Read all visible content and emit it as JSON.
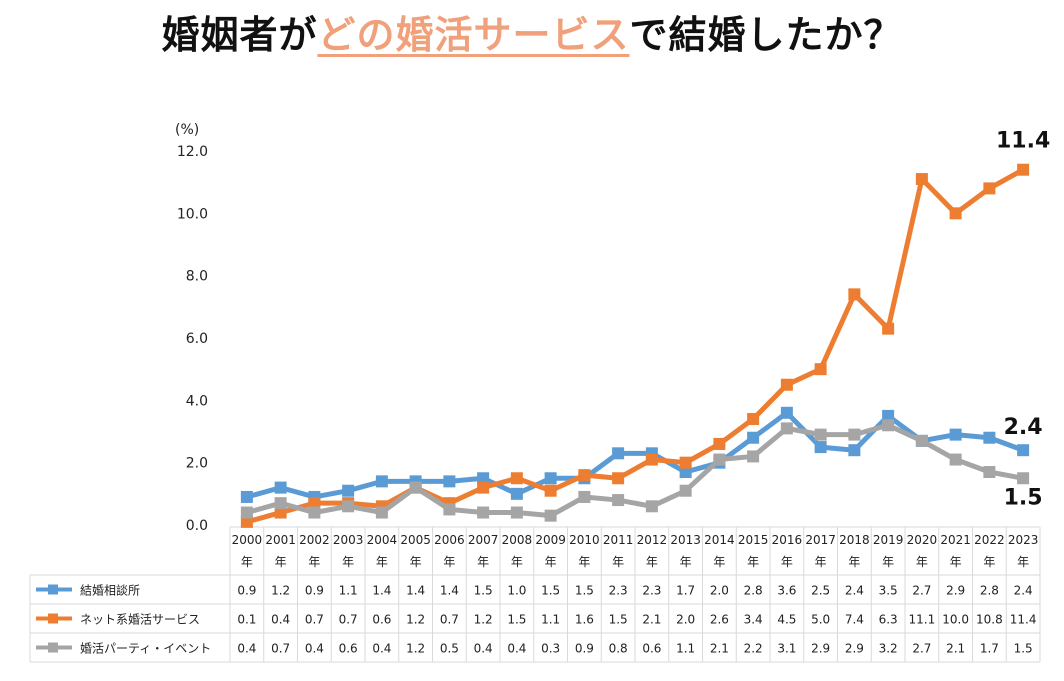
{
  "title": {
    "part1": "婚姻者が",
    "highlight": "どの婚活サービス",
    "part2": "で結婚したか？"
  },
  "colors": {
    "title_highlight": "#f0a07a",
    "series": [
      "#5b9bd5",
      "#ed7d31",
      "#a5a5a5"
    ],
    "grid": "#d9d9d9"
  },
  "chart_data": {
    "type": "line",
    "yunit": "(%)",
    "ylim": [
      0,
      12
    ],
    "yticks": [
      "0.0",
      "2.0",
      "4.0",
      "6.0",
      "8.0",
      "10.0",
      "12.0"
    ],
    "grid": false,
    "legend": "data-table",
    "x": [
      "2000",
      "2001",
      "2002",
      "2003",
      "2004",
      "2005",
      "2006",
      "2007",
      "2008",
      "2009",
      "2010",
      "2011",
      "2012",
      "2013",
      "2014",
      "2015",
      "2016",
      "2017",
      "2018",
      "2019",
      "2020",
      "2021",
      "2022",
      "2023"
    ],
    "x_suffix": "年",
    "series": [
      {
        "name": "結婚相談所",
        "values": [
          0.9,
          1.2,
          0.9,
          1.1,
          1.4,
          1.4,
          1.4,
          1.5,
          1.0,
          1.5,
          1.5,
          2.3,
          2.3,
          1.7,
          2.0,
          2.8,
          3.6,
          2.5,
          2.4,
          3.5,
          2.7,
          2.9,
          2.8,
          2.4
        ]
      },
      {
        "name": "ネット系婚活サービス",
        "values": [
          0.1,
          0.4,
          0.7,
          0.7,
          0.6,
          1.2,
          0.7,
          1.2,
          1.5,
          1.1,
          1.6,
          1.5,
          2.1,
          2.0,
          2.6,
          3.4,
          4.5,
          5.0,
          7.4,
          6.3,
          11.1,
          10.0,
          10.8,
          11.4
        ]
      },
      {
        "name": "婚活パーティ・イベント",
        "values": [
          0.4,
          0.7,
          0.4,
          0.6,
          0.4,
          1.2,
          0.5,
          0.4,
          0.4,
          0.3,
          0.9,
          0.8,
          0.6,
          1.1,
          2.1,
          2.2,
          3.1,
          2.9,
          2.9,
          3.2,
          2.7,
          2.1,
          1.7,
          1.5
        ]
      }
    ],
    "end_labels": [
      "2.4",
      "11.4",
      "1.5"
    ]
  }
}
